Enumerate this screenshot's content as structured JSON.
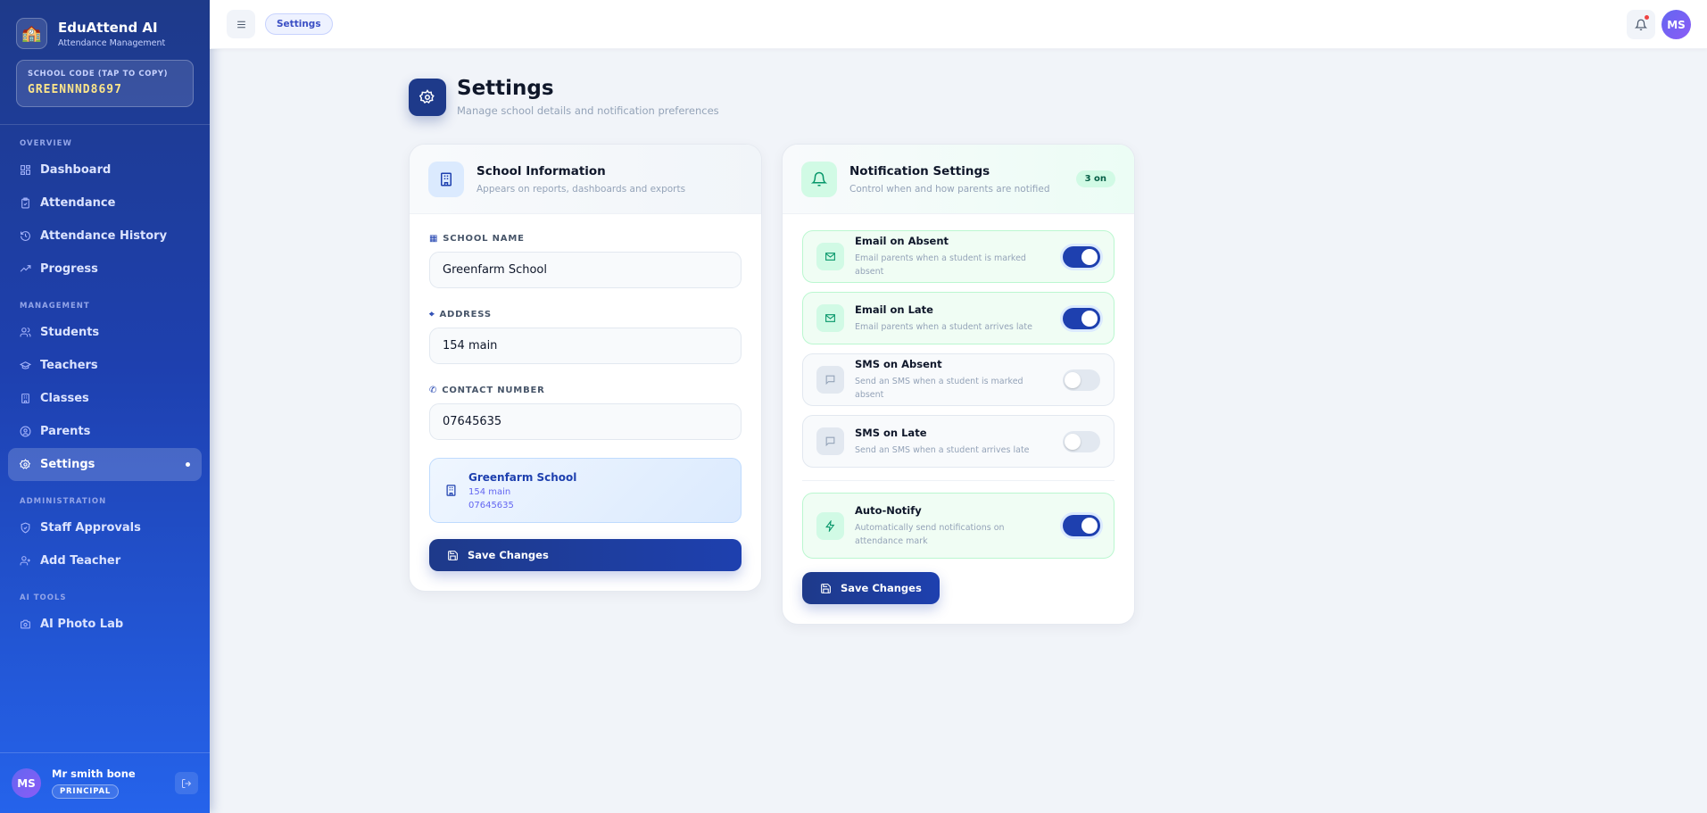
{
  "sidebar": {
    "app_name": "EduAttend AI",
    "app_subtitle": "Attendance Management",
    "logo_icon": "school-emoji",
    "school_code_label": "SCHOOL CODE (TAP TO COPY)",
    "school_code": "GREENNND8697",
    "sections": [
      {
        "title": "OVERVIEW",
        "items": [
          {
            "label": "Dashboard",
            "icon": "grid-icon"
          },
          {
            "label": "Attendance",
            "icon": "clipboard-check-icon"
          },
          {
            "label": "Attendance History",
            "icon": "history-icon"
          },
          {
            "label": "Progress",
            "icon": "trending-up-icon"
          }
        ]
      },
      {
        "title": "MANAGEMENT",
        "items": [
          {
            "label": "Students",
            "icon": "users-icon"
          },
          {
            "label": "Teachers",
            "icon": "graduation-cap-icon"
          },
          {
            "label": "Classes",
            "icon": "building-icon"
          },
          {
            "label": "Parents",
            "icon": "user-circle-icon"
          },
          {
            "label": "Settings",
            "icon": "gear-icon",
            "active": true
          }
        ]
      },
      {
        "title": "ADMINISTRATION",
        "items": [
          {
            "label": "Staff Approvals",
            "icon": "shield-check-icon"
          },
          {
            "label": "Add Teacher",
            "icon": "user-plus-icon"
          }
        ]
      },
      {
        "title": "AI TOOLS",
        "items": [
          {
            "label": "AI Photo Lab",
            "icon": "camera-icon"
          }
        ]
      }
    ],
    "user": {
      "initials": "MS",
      "name": "Mr smith bone",
      "role": "PRINCIPAL"
    }
  },
  "topbar": {
    "breadcrumb": "Settings",
    "avatar_initials": "MS",
    "has_notification": true
  },
  "page": {
    "title": "Settings",
    "subtitle": "Manage school details and notification preferences"
  },
  "school_card": {
    "title": "School Information",
    "subtitle": "Appears on reports, dashboards and exports",
    "fields": [
      {
        "label": "SCHOOL NAME",
        "value": "Greenfarm School"
      },
      {
        "label": "ADDRESS",
        "value": "154 main"
      },
      {
        "label": "CONTACT NUMBER",
        "value": "07645635"
      }
    ],
    "preview": {
      "name": "Greenfarm School",
      "address": "154 main",
      "phone": "07645635"
    },
    "save_label": "Save Changes"
  },
  "notif_card": {
    "title": "Notification Settings",
    "subtitle": "Control when and how parents are notified",
    "badge": "3 on",
    "items": [
      {
        "title": "Email on Absent",
        "desc": "Email parents when a student is marked absent",
        "on": true
      },
      {
        "title": "Email on Late",
        "desc": "Email parents when a student arrives late",
        "on": true
      },
      {
        "title": "SMS on Absent",
        "desc": "Send an SMS when a student is marked absent",
        "on": false
      },
      {
        "title": "SMS on Late",
        "desc": "Send an SMS when a student arrives late",
        "on": false
      }
    ],
    "auto": {
      "title": "Auto-Notify",
      "desc": "Automatically send notifications on attendance mark",
      "on": true
    },
    "save_label": "Save Changes"
  },
  "colors": {
    "primary": "#1e40af",
    "sidebar_top": "#1e3a8a",
    "sidebar_bottom": "#2563eb",
    "success_bg": "#f0fdf4",
    "code": "#fde68a"
  }
}
